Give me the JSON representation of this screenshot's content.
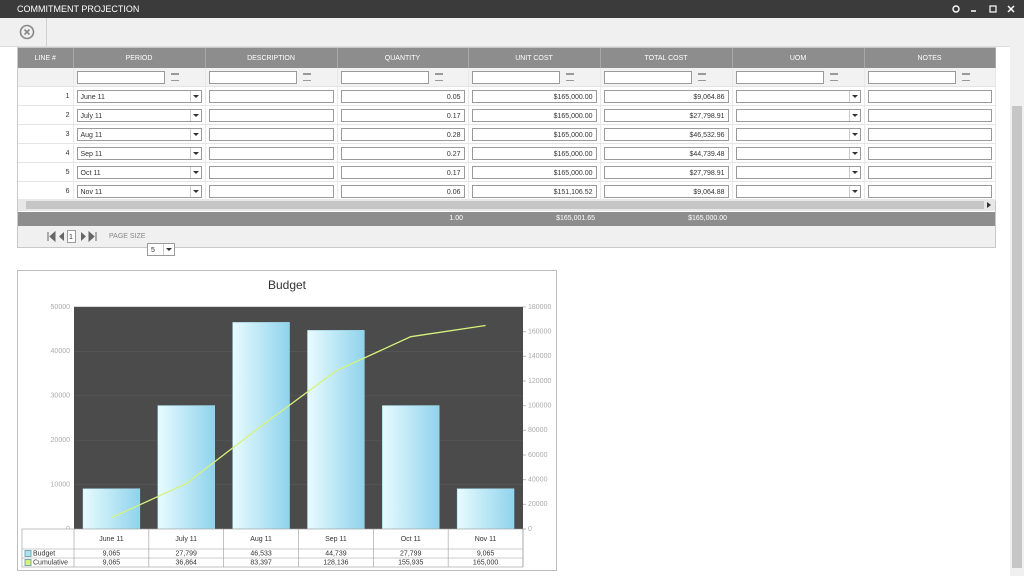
{
  "window": {
    "title": "COMMITMENT PROJECTION"
  },
  "grid": {
    "columns": [
      "LINE #",
      "PERIOD",
      "DESCRIPTION",
      "QUANTITY",
      "UNIT COST",
      "TOTAL COST",
      "UOM",
      "NOTES"
    ],
    "rows": [
      {
        "line": "1",
        "period": "June 11",
        "quantity": "0.05",
        "unit_cost": "$165,000.00",
        "total_cost": "$9,064.86"
      },
      {
        "line": "2",
        "period": "July 11",
        "quantity": "0.17",
        "unit_cost": "$165,000.00",
        "total_cost": "$27,798.91"
      },
      {
        "line": "3",
        "period": "Aug 11",
        "quantity": "0.28",
        "unit_cost": "$165,000.00",
        "total_cost": "$46,532.96"
      },
      {
        "line": "4",
        "period": "Sep 11",
        "quantity": "0.27",
        "unit_cost": "$165,000.00",
        "total_cost": "$44,739.48"
      },
      {
        "line": "5",
        "period": "Oct 11",
        "quantity": "0.17",
        "unit_cost": "$165,000.00",
        "total_cost": "$27,798.91"
      },
      {
        "line": "6",
        "period": "Nov 11",
        "quantity": "0.06",
        "unit_cost": "$151,106.52",
        "total_cost": "$9,064.88"
      }
    ],
    "totals": {
      "quantity": "1.00",
      "unit_cost": "$165,001.65",
      "total_cost": "$165,000.00"
    },
    "pager": {
      "page": "1",
      "page_size_label": "PAGE SIZE",
      "page_size": "5"
    }
  },
  "chart_data": {
    "type": "bar",
    "title": "Budget",
    "categories": [
      "June 11",
      "July 11",
      "Aug 11",
      "Sep 11",
      "Oct 11",
      "Nov 11"
    ],
    "series": [
      {
        "name": "Budget",
        "type": "bar",
        "color": "#a9e2f3",
        "values": [
          9065,
          27799,
          46533,
          44739,
          27799,
          9065
        ],
        "value_labels": [
          "9,065",
          "27,799",
          "46,533",
          "44,739",
          "27,799",
          "9,065"
        ]
      },
      {
        "name": "Cumulative",
        "type": "line",
        "axis": "y2",
        "color": "#d6f27c",
        "values": [
          9065,
          36864,
          83397,
          128136,
          155935,
          165000
        ],
        "value_labels": [
          "9,065",
          "36,864",
          "83,397",
          "128,136",
          "155,935",
          "165,000"
        ]
      }
    ],
    "ylim": [
      0,
      50000
    ],
    "yticks": [
      0,
      10000,
      20000,
      30000,
      40000,
      50000
    ],
    "y2lim": [
      0,
      180000
    ],
    "y2ticks": [
      0,
      20000,
      40000,
      60000,
      80000,
      100000,
      120000,
      140000,
      160000,
      180000
    ],
    "grid": true
  }
}
